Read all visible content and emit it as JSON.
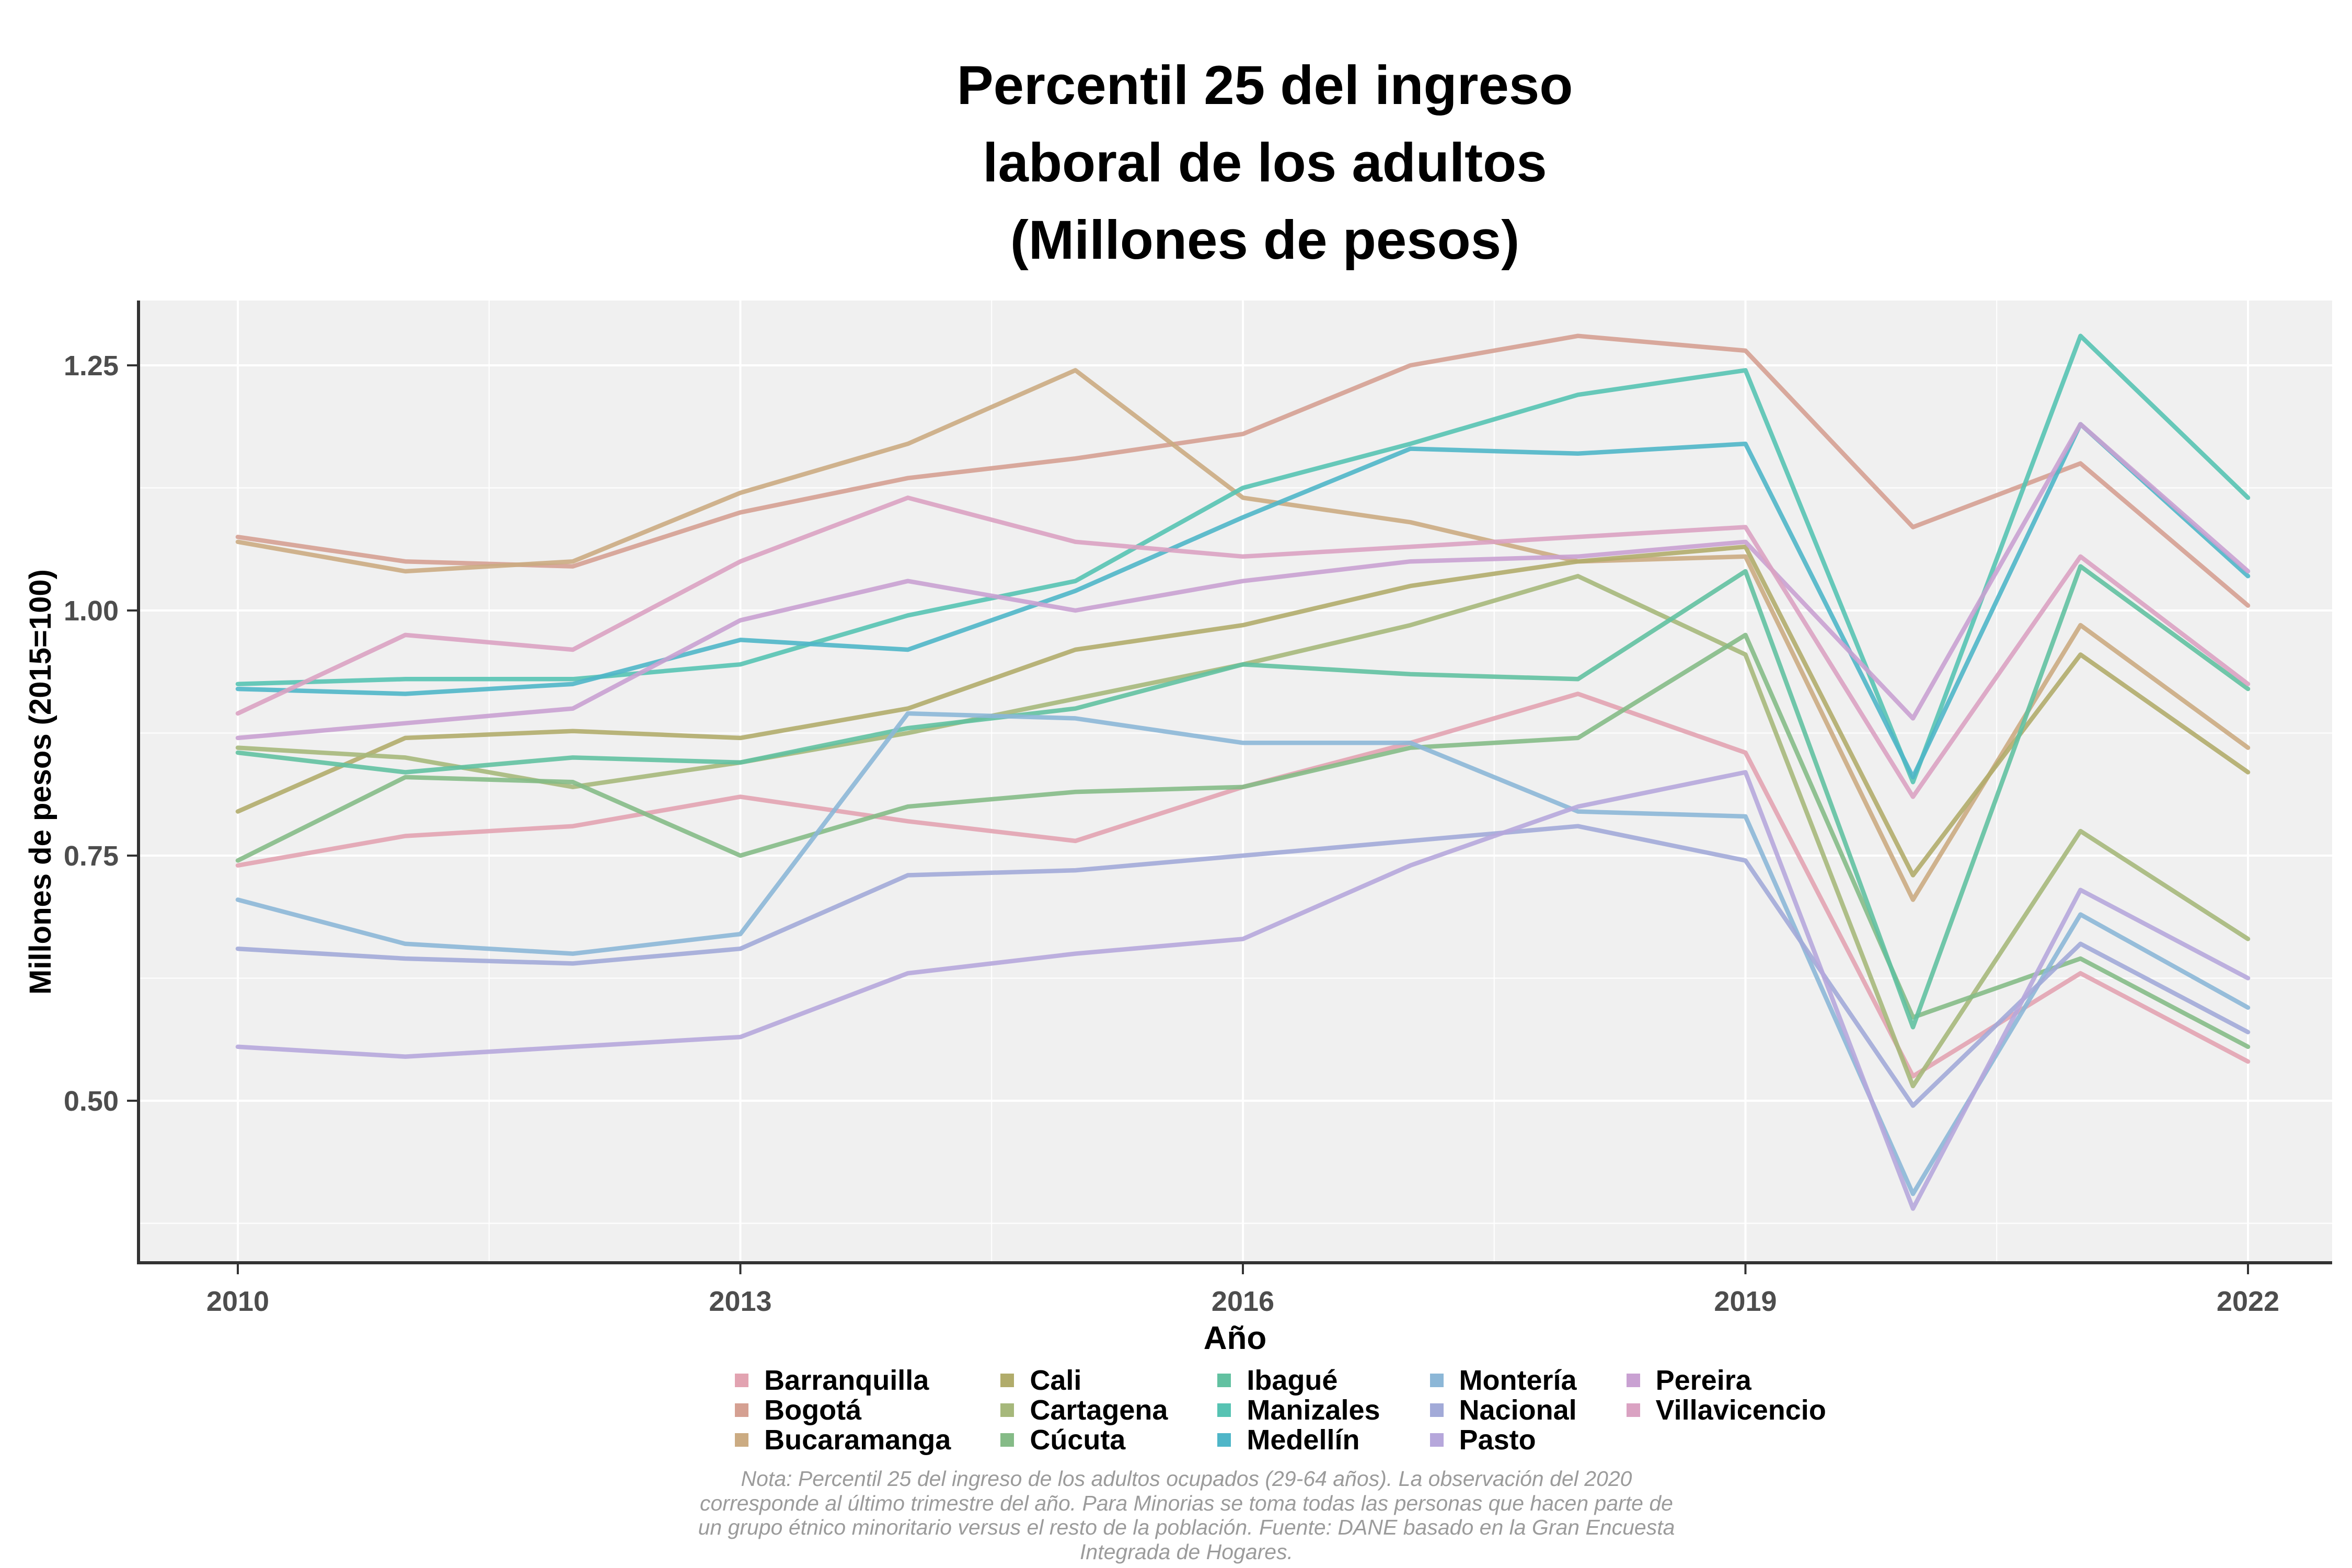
{
  "title": {
    "line1": "Percentil 25 del ingreso",
    "line2": "laboral de los adultos",
    "line3": "(Millones de pesos)"
  },
  "note": {
    "line1": "Nota: Percentil 25 del ingreso de los adultos ocupados (29-64 años). La observación del 2020",
    "line2": "corresponde al último trimestre del año. Para Minorias se toma todas las personas que hacen parte de",
    "line3": "un grupo étnico minoritario versus el resto de la población. Fuente: DANE basado en la Gran Encuesta",
    "line4": "Integrada de Hogares."
  },
  "chart_data": {
    "type": "line",
    "title": "Percentil 25 del ingreso laboral de los adultos (Millones de pesos)",
    "xlabel": "Año",
    "ylabel": "Millones de pesos (2015=100)",
    "x": [
      2010,
      2011,
      2012,
      2013,
      2014,
      2015,
      2016,
      2017,
      2018,
      2019,
      2020,
      2021,
      2022
    ],
    "xticks": [
      {
        "v": 2010,
        "label": "2010"
      },
      {
        "v": 2013,
        "label": "2013"
      },
      {
        "v": 2016,
        "label": "2016"
      },
      {
        "v": 2019,
        "label": "2019"
      },
      {
        "v": 2022,
        "label": "2022"
      }
    ],
    "yticks": [
      {
        "v": 0.5,
        "label": "0.50"
      },
      {
        "v": 0.75,
        "label": "0.75"
      },
      {
        "v": 1.0,
        "label": "1.00"
      },
      {
        "v": 1.25,
        "label": "1.25"
      }
    ],
    "x_minor": [
      2011.5,
      2014.5,
      2017.5,
      2020.5
    ],
    "y_minor": [
      0.375,
      0.625,
      0.875,
      1.125
    ],
    "ylim": [
      0.335,
      1.316
    ],
    "xlim": [
      2009.41,
      2022.5
    ],
    "grid": true,
    "legend_position": "bottom",
    "legend_columns": 5,
    "legend_rows": 3,
    "panel_background": "#F0F0F0",
    "grid_color": "#FFFFFF",
    "axis_color": "#333333",
    "tick_label_color": "#4d4d4d",
    "series": [
      {
        "name": "Barranquilla",
        "color": "#E2A3B1",
        "values": [
          0.74,
          0.77,
          0.78,
          0.81,
          0.785,
          0.765,
          0.82,
          0.865,
          0.915,
          0.855,
          0.525,
          0.63,
          0.54
        ]
      },
      {
        "name": "Bogotá",
        "color": "#D5A092",
        "values": [
          1.075,
          1.05,
          1.045,
          1.1,
          1.135,
          1.155,
          1.18,
          1.25,
          1.28,
          1.265,
          1.085,
          1.15,
          1.005
        ]
      },
      {
        "name": "Bucaramanga",
        "color": "#CBAB82",
        "values": [
          1.07,
          1.04,
          1.05,
          1.12,
          1.17,
          1.245,
          1.115,
          1.09,
          1.05,
          1.055,
          0.705,
          0.985,
          0.86
        ]
      },
      {
        "name": "Cali",
        "color": "#B1AC6B",
        "values": [
          0.795,
          0.87,
          0.877,
          0.87,
          0.9,
          0.96,
          0.985,
          1.025,
          1.05,
          1.065,
          0.73,
          0.955,
          0.835
        ]
      },
      {
        "name": "Cartagena",
        "color": "#A6B87B",
        "values": [
          0.86,
          0.85,
          0.82,
          0.845,
          0.875,
          0.91,
          0.945,
          0.985,
          1.035,
          0.955,
          0.515,
          0.775,
          0.665
        ]
      },
      {
        "name": "Cúcuta",
        "color": "#85BB87",
        "values": [
          0.745,
          0.83,
          0.825,
          0.75,
          0.8,
          0.815,
          0.82,
          0.86,
          0.87,
          0.975,
          0.585,
          0.645,
          0.555
        ]
      },
      {
        "name": "Ibagué",
        "color": "#62C1A1",
        "values": [
          0.855,
          0.835,
          0.85,
          0.845,
          0.88,
          0.9,
          0.945,
          0.935,
          0.93,
          1.04,
          0.575,
          1.045,
          0.92
        ]
      },
      {
        "name": "Manizales",
        "color": "#57C3B3",
        "values": [
          0.925,
          0.93,
          0.93,
          0.945,
          0.995,
          1.03,
          1.125,
          1.17,
          1.22,
          1.245,
          0.825,
          1.28,
          1.115
        ]
      },
      {
        "name": "Medellín",
        "color": "#4FB6C8",
        "values": [
          0.92,
          0.915,
          0.925,
          0.97,
          0.96,
          1.02,
          1.095,
          1.165,
          1.16,
          1.17,
          0.83,
          1.19,
          1.035
        ]
      },
      {
        "name": "Montería",
        "color": "#8CB7D7",
        "values": [
          0.705,
          0.66,
          0.65,
          0.67,
          0.895,
          0.89,
          0.865,
          0.865,
          0.795,
          0.79,
          0.405,
          0.69,
          0.595
        ]
      },
      {
        "name": "Nacional",
        "color": "#A2AAD8",
        "values": [
          0.655,
          0.645,
          0.64,
          0.655,
          0.73,
          0.735,
          0.75,
          0.765,
          0.78,
          0.745,
          0.495,
          0.66,
          0.57
        ]
      },
      {
        "name": "Pasto",
        "color": "#B6A7DB",
        "values": [
          0.555,
          0.545,
          0.555,
          0.565,
          0.63,
          0.65,
          0.665,
          0.74,
          0.8,
          0.835,
          0.39,
          0.715,
          0.625
        ]
      },
      {
        "name": "Pereira",
        "color": "#C9A1D2",
        "values": [
          0.87,
          0.885,
          0.9,
          0.99,
          1.03,
          1.0,
          1.03,
          1.05,
          1.055,
          1.07,
          0.89,
          1.19,
          1.04
        ]
      },
      {
        "name": "Villavicencio",
        "color": "#DAA2C2",
        "values": [
          0.895,
          0.975,
          0.96,
          1.05,
          1.115,
          1.07,
          1.055,
          1.065,
          1.075,
          1.085,
          0.81,
          1.055,
          0.925
        ]
      }
    ]
  }
}
